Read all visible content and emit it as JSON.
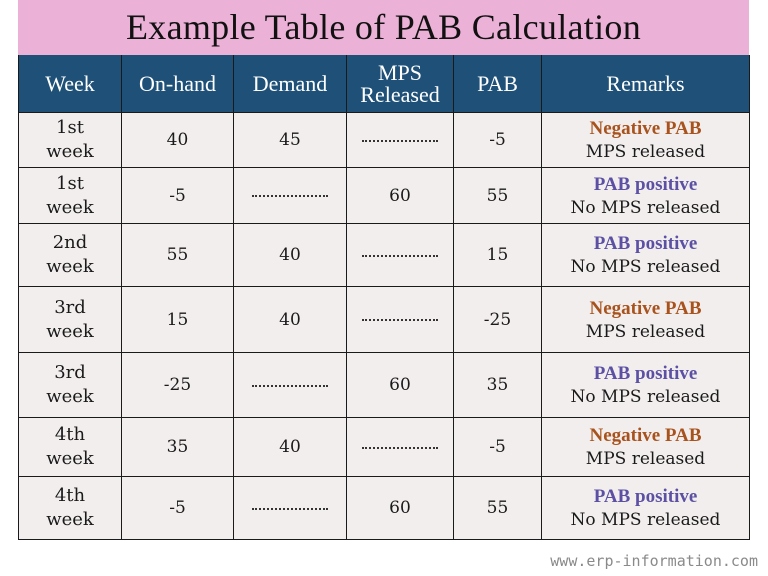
{
  "title": "Example Table of PAB Calculation",
  "colors": {
    "title_bg": "#ebb1d6",
    "header_bg": "#1e5078",
    "cell_bg": "#f3eeee",
    "negative": "#a8531d",
    "positive": "#5b50a3"
  },
  "table": {
    "headers": [
      "Week",
      "On-hand",
      "Demand",
      "MPS Released",
      "PAB",
      "Remarks"
    ],
    "header_mps_line1": "MPS",
    "header_mps_line2": "Released",
    "rows": [
      {
        "week_num": "1st",
        "week_word": "week",
        "on_hand": "40",
        "demand": "45",
        "mps_released": "",
        "pab": "-5",
        "remark_title": "Negative PAB",
        "remark_sub": "MPS released",
        "status": "negative"
      },
      {
        "week_num": "1st",
        "week_word": "week",
        "on_hand": "-5",
        "demand": "",
        "mps_released": "60",
        "pab": "55",
        "remark_title": "PAB positive",
        "remark_sub": "No MPS released",
        "status": "positive"
      },
      {
        "week_num": "2nd",
        "week_word": "week",
        "on_hand": "55",
        "demand": "40",
        "mps_released": "",
        "pab": "15",
        "remark_title": "PAB positive",
        "remark_sub": "No MPS released",
        "status": "positive"
      },
      {
        "week_num": "3rd",
        "week_word": "week",
        "on_hand": "15",
        "demand": "40",
        "mps_released": "",
        "pab": "-25",
        "remark_title": "Negative PAB",
        "remark_sub": "MPS released",
        "status": "negative"
      },
      {
        "week_num": "3rd",
        "week_word": "week",
        "on_hand": "-25",
        "demand": "",
        "mps_released": "60",
        "pab": "35",
        "remark_title": "PAB positive",
        "remark_sub": "No MPS released",
        "status": "positive"
      },
      {
        "week_num": "4th",
        "week_word": "week",
        "on_hand": "35",
        "demand": "40",
        "mps_released": "",
        "pab": "-5",
        "remark_title": "Negative PAB",
        "remark_sub": "MPS released",
        "status": "negative"
      },
      {
        "week_num": "4th",
        "week_word": "week",
        "on_hand": "-5",
        "demand": "",
        "mps_released": "60",
        "pab": "55",
        "remark_title": "PAB positive",
        "remark_sub": "No MPS released",
        "status": "positive"
      }
    ]
  },
  "watermark": "www.erp-information.com"
}
